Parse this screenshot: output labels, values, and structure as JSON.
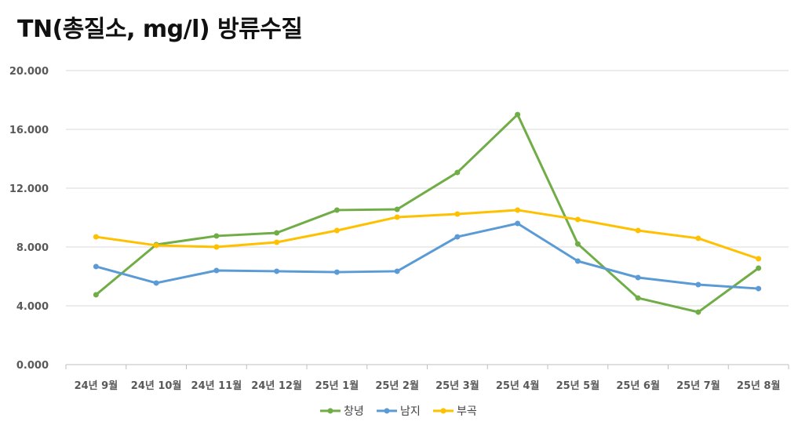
{
  "chart_data": {
    "type": "line",
    "title": "TN(총질소, mg/l) 방류수질",
    "xlabel": "",
    "ylabel": "",
    "ylim": [
      0,
      20
    ],
    "yticks": [
      "0.000",
      "4.000",
      "8.000",
      "12.000",
      "16.000",
      "20.000"
    ],
    "ytick_values": [
      0,
      4,
      8,
      12,
      16,
      20
    ],
    "grid": true,
    "legend_position": "bottom",
    "categories": [
      "24년 9월",
      "24년 10월",
      "24년 11월",
      "24년 12월",
      "25년 1월",
      "25년 2월",
      "25년 3월",
      "25년 4월",
      "25년 5월",
      "25년 6월",
      "25년 7월",
      "25년 8월"
    ],
    "series": [
      {
        "name": "창녕",
        "color": "#70AD47",
        "values": [
          4.75,
          8.16,
          8.75,
          8.96,
          10.51,
          10.56,
          13.07,
          17.01,
          8.21,
          4.53,
          3.57,
          6.56
        ]
      },
      {
        "name": "남지",
        "color": "#5B9BD5",
        "values": [
          6.67,
          5.55,
          6.4,
          6.35,
          6.29,
          6.35,
          8.69,
          9.6,
          7.04,
          5.92,
          5.44,
          5.17
        ]
      },
      {
        "name": "부곡",
        "color": "#FFC000",
        "values": [
          8.69,
          8.11,
          8.0,
          8.32,
          9.12,
          10.03,
          10.24,
          10.51,
          9.87,
          9.12,
          8.59,
          7.2
        ]
      }
    ]
  }
}
